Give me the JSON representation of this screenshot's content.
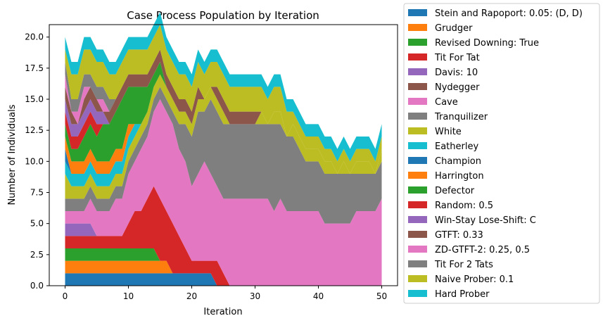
{
  "chart_data": {
    "type": "area",
    "stacked": true,
    "title": "Case Process Population by Iteration",
    "xlabel": "Iteration",
    "ylabel": "Number of Individuals",
    "xlim": [
      -2.5,
      52.5
    ],
    "ylim": [
      0,
      21
    ],
    "xticks": [
      0,
      10,
      20,
      30,
      40,
      50
    ],
    "yticks": [
      0.0,
      2.5,
      5.0,
      7.5,
      10.0,
      12.5,
      15.0,
      17.5,
      20.0
    ],
    "ytick_labels": [
      "0.0",
      "2.5",
      "5.0",
      "7.5",
      "10.0",
      "12.5",
      "15.0",
      "17.5",
      "20.0"
    ],
    "legend_position": "outside-right",
    "x": [
      0,
      1,
      2,
      3,
      4,
      5,
      6,
      7,
      8,
      9,
      10,
      11,
      12,
      13,
      14,
      15,
      16,
      17,
      18,
      19,
      20,
      21,
      22,
      23,
      24,
      25,
      26,
      27,
      28,
      29,
      30,
      31,
      32,
      33,
      34,
      35,
      36,
      37,
      38,
      39,
      40,
      41,
      42,
      43,
      44,
      45,
      46,
      47,
      48,
      49,
      50
    ],
    "series": [
      {
        "name": "Stein and Rapoport: 0.05: (D, D)",
        "color": "#1f77b4",
        "values": [
          1,
          1,
          1,
          1,
          1,
          1,
          1,
          1,
          1,
          1,
          1,
          1,
          1,
          1,
          1,
          1,
          1,
          1,
          1,
          1,
          1,
          1,
          1,
          1,
          0,
          0,
          0,
          0,
          0,
          0,
          0,
          0,
          0,
          0,
          0,
          0,
          0,
          0,
          0,
          0,
          0,
          0,
          0,
          0,
          0,
          0,
          0,
          0,
          0,
          0,
          0
        ]
      },
      {
        "name": "Grudger",
        "color": "#ff7f0e",
        "values": [
          1,
          1,
          1,
          1,
          1,
          1,
          1,
          1,
          1,
          1,
          1,
          1,
          1,
          1,
          1,
          1,
          1,
          0,
          0,
          0,
          0,
          0,
          0,
          0,
          0,
          0,
          0,
          0,
          0,
          0,
          0,
          0,
          0,
          0,
          0,
          0,
          0,
          0,
          0,
          0,
          0,
          0,
          0,
          0,
          0,
          0,
          0,
          0,
          0,
          0,
          0
        ]
      },
      {
        "name": "Revised Downing: True",
        "color": "#2ca02c",
        "values": [
          1,
          1,
          1,
          1,
          1,
          1,
          1,
          1,
          1,
          1,
          1,
          1,
          1,
          1,
          1,
          0,
          0,
          0,
          0,
          0,
          0,
          0,
          0,
          0,
          0,
          0,
          0,
          0,
          0,
          0,
          0,
          0,
          0,
          0,
          0,
          0,
          0,
          0,
          0,
          0,
          0,
          0,
          0,
          0,
          0,
          0,
          0,
          0,
          0,
          0,
          0
        ]
      },
      {
        "name": "Tit For Tat",
        "color": "#d62728",
        "values": [
          1,
          1,
          1,
          1,
          1,
          1,
          1,
          1,
          1,
          1,
          2,
          3,
          3,
          4,
          5,
          5,
          4,
          4,
          3,
          2,
          1,
          1,
          1,
          1,
          2,
          1,
          0,
          0,
          0,
          0,
          0,
          0,
          0,
          0,
          0,
          0,
          0,
          0,
          0,
          0,
          0,
          0,
          0,
          0,
          0,
          0,
          0,
          0,
          0,
          0,
          0
        ]
      },
      {
        "name": "Davis: 10",
        "color": "#9467bd",
        "values": [
          1,
          1,
          1,
          1,
          1,
          0,
          0,
          0,
          0,
          0,
          0,
          0,
          0,
          0,
          0,
          0,
          0,
          0,
          0,
          0,
          0,
          0,
          0,
          0,
          0,
          0,
          0,
          0,
          0,
          0,
          0,
          0,
          0,
          0,
          0,
          0,
          0,
          0,
          0,
          0,
          0,
          0,
          0,
          0,
          0,
          0,
          0,
          0,
          0,
          0,
          0
        ]
      },
      {
        "name": "Nydegger",
        "color": "#8c564b",
        "values": [
          0,
          0,
          0,
          0,
          0,
          0,
          0,
          0,
          0,
          0,
          0,
          0,
          0,
          0,
          0,
          0,
          0,
          0,
          0,
          0,
          0,
          0,
          0,
          0,
          0,
          0,
          0,
          0,
          0,
          0,
          0,
          0,
          0,
          0,
          0,
          0,
          0,
          0,
          0,
          0,
          0,
          0,
          0,
          0,
          0,
          0,
          0,
          0,
          0,
          0,
          0
        ]
      },
      {
        "name": "Cave",
        "color": "#e377c2",
        "values": [
          1,
          1,
          1,
          1,
          2,
          2,
          2,
          2,
          3,
          3,
          4,
          4,
          5,
          5,
          6,
          8,
          8,
          8,
          7,
          7,
          6,
          7,
          8,
          7,
          6,
          6,
          7,
          7,
          7,
          7,
          7,
          7,
          7,
          6,
          7,
          6,
          6,
          6,
          6,
          6,
          6,
          5,
          5,
          5,
          5,
          5,
          6,
          6,
          6,
          6,
          7
        ]
      },
      {
        "name": "Tranquilizer",
        "color": "#7f7f7f",
        "values": [
          1,
          1,
          1,
          1,
          1,
          1,
          1,
          1,
          1,
          1,
          1,
          1,
          1,
          1,
          1,
          1,
          1,
          1,
          2,
          3,
          4,
          5,
          4,
          6,
          6,
          6,
          6,
          6,
          6,
          6,
          6,
          6,
          6,
          7,
          6,
          6,
          6,
          5,
          4,
          4,
          4,
          4,
          4,
          4,
          4,
          4,
          3,
          3,
          3,
          3,
          3
        ]
      },
      {
        "name": "White",
        "color": "#bcbd22",
        "values": [
          2,
          1,
          1,
          1,
          1,
          1,
          1,
          1,
          1,
          1,
          1,
          1,
          1,
          1,
          1,
          1,
          1,
          1,
          1,
          1,
          1,
          1,
          1,
          1,
          1,
          1,
          0,
          0,
          0,
          0,
          0,
          1,
          0,
          1,
          1,
          0,
          1,
          1,
          1,
          1,
          1,
          1,
          1,
          0,
          1,
          0,
          1,
          1,
          1,
          0,
          1
        ]
      },
      {
        "name": "Eatherley",
        "color": "#17becf",
        "values": [
          1,
          1,
          1,
          1,
          1,
          1,
          1,
          1,
          1,
          1,
          1,
          1,
          0,
          0,
          0,
          0,
          0,
          0,
          0,
          0,
          0,
          0,
          0,
          0,
          0,
          0,
          0,
          0,
          0,
          0,
          0,
          0,
          0,
          0,
          0,
          0,
          0,
          0,
          0,
          0,
          0,
          0,
          0,
          0,
          0,
          0,
          0,
          0,
          0,
          0,
          0
        ]
      },
      {
        "name": "Champion",
        "color": "#1f77b4",
        "values": [
          1,
          0,
          0,
          0,
          0,
          0,
          0,
          0,
          0,
          0,
          0,
          0,
          0,
          0,
          0,
          0,
          0,
          0,
          0,
          0,
          0,
          0,
          0,
          0,
          0,
          0,
          0,
          0,
          0,
          0,
          0,
          0,
          0,
          0,
          0,
          0,
          0,
          0,
          0,
          0,
          0,
          0,
          0,
          0,
          0,
          0,
          0,
          0,
          0,
          0,
          0
        ]
      },
      {
        "name": "Harrington",
        "color": "#ff7f0e",
        "values": [
          1,
          1,
          1,
          1,
          1,
          1,
          1,
          1,
          1,
          1,
          1,
          0,
          0,
          0,
          0,
          0,
          0,
          0,
          0,
          0,
          0,
          0,
          0,
          0,
          0,
          0,
          0,
          0,
          0,
          0,
          0,
          0,
          0,
          0,
          0,
          0,
          0,
          0,
          0,
          0,
          0,
          0,
          0,
          0,
          0,
          0,
          0,
          0,
          0,
          0,
          0
        ]
      },
      {
        "name": "Defector",
        "color": "#2ca02c",
        "values": [
          1,
          1,
          1,
          2,
          2,
          2,
          3,
          3,
          3,
          4,
          3,
          3,
          3,
          2,
          1,
          1,
          0,
          0,
          0,
          0,
          0,
          0,
          0,
          0,
          0,
          0,
          0,
          0,
          0,
          0,
          0,
          0,
          0,
          0,
          0,
          0,
          0,
          0,
          0,
          0,
          0,
          0,
          0,
          0,
          0,
          0,
          0,
          0,
          0,
          0,
          0
        ]
      },
      {
        "name": "Random: 0.5",
        "color": "#d62728",
        "values": [
          1,
          1,
          1,
          1,
          1,
          1,
          0,
          0,
          0,
          0,
          0,
          0,
          0,
          0,
          0,
          0,
          0,
          0,
          0,
          0,
          0,
          0,
          0,
          0,
          0,
          0,
          0,
          0,
          0,
          0,
          0,
          0,
          0,
          0,
          0,
          0,
          0,
          0,
          0,
          0,
          0,
          0,
          0,
          0,
          0,
          0,
          0,
          0,
          0,
          0,
          0
        ]
      },
      {
        "name": "Win-Stay Lose-Shift: C",
        "color": "#9467bd",
        "values": [
          1,
          1,
          1,
          1,
          1,
          1,
          1,
          0,
          0,
          0,
          0,
          0,
          0,
          0,
          0,
          0,
          0,
          0,
          0,
          0,
          0,
          0,
          0,
          0,
          0,
          0,
          0,
          0,
          0,
          0,
          0,
          0,
          0,
          0,
          0,
          0,
          0,
          0,
          0,
          0,
          0,
          0,
          0,
          0,
          0,
          0,
          0,
          0,
          0,
          0,
          0
        ]
      },
      {
        "name": "GTFT: 0.33",
        "color": "#8c564b",
        "values": [
          1,
          1,
          0,
          1,
          1,
          1,
          0,
          1,
          1,
          1,
          1,
          1,
          1,
          1,
          1,
          1,
          1,
          1,
          1,
          1,
          1,
          1,
          0,
          0,
          1,
          1,
          1,
          1,
          1,
          1,
          1,
          0,
          0,
          0,
          0,
          0,
          0,
          0,
          0,
          0,
          0,
          0,
          0,
          0,
          0,
          0,
          0,
          0,
          0,
          0,
          0
        ]
      },
      {
        "name": "ZD-GTFT-2: 0.25, 0.5",
        "color": "#e377c2",
        "values": [
          1,
          0,
          1,
          1,
          0,
          0,
          1,
          0,
          0,
          0,
          0,
          0,
          0,
          0,
          0,
          0,
          0,
          0,
          0,
          0,
          0,
          0,
          0,
          0,
          0,
          0,
          0,
          0,
          0,
          0,
          0,
          0,
          0,
          0,
          0,
          0,
          0,
          0,
          0,
          0,
          0,
          0,
          0,
          0,
          0,
          0,
          0,
          0,
          0,
          0,
          0
        ]
      },
      {
        "name": "Tit For 2 Tats",
        "color": "#7f7f7f",
        "values": [
          1,
          1,
          1,
          1,
          1,
          1,
          1,
          1,
          0,
          0,
          0,
          0,
          0,
          0,
          0,
          0,
          0,
          0,
          0,
          0,
          0,
          0,
          0,
          0,
          0,
          0,
          0,
          0,
          0,
          0,
          0,
          0,
          0,
          0,
          0,
          0,
          0,
          0,
          0,
          0,
          0,
          0,
          0,
          0,
          0,
          0,
          0,
          0,
          0,
          0,
          0
        ]
      },
      {
        "name": "Naive Prober: 0.1",
        "color": "#bcbd22",
        "values": [
          1,
          2,
          2,
          2,
          2,
          2,
          2,
          2,
          2,
          2,
          2,
          2,
          2,
          2,
          2,
          2,
          2,
          2,
          2,
          2,
          2,
          2,
          2,
          2,
          2,
          2,
          2,
          2,
          2,
          2,
          2,
          2,
          2,
          2,
          2,
          2,
          1,
          1,
          1,
          1,
          1,
          1,
          1,
          1,
          1,
          1,
          1,
          1,
          1,
          1,
          1
        ]
      },
      {
        "name": "Hard Prober",
        "color": "#17becf",
        "values": [
          1,
          1,
          1,
          1,
          1,
          1,
          1,
          1,
          1,
          1,
          1,
          1,
          1,
          1,
          1,
          1,
          1,
          1,
          1,
          1,
          1,
          1,
          1,
          1,
          1,
          1,
          1,
          1,
          1,
          1,
          1,
          1,
          1,
          1,
          1,
          1,
          1,
          1,
          1,
          1,
          1,
          1,
          1,
          1,
          1,
          1,
          1,
          1,
          1,
          1,
          1
        ]
      }
    ]
  }
}
